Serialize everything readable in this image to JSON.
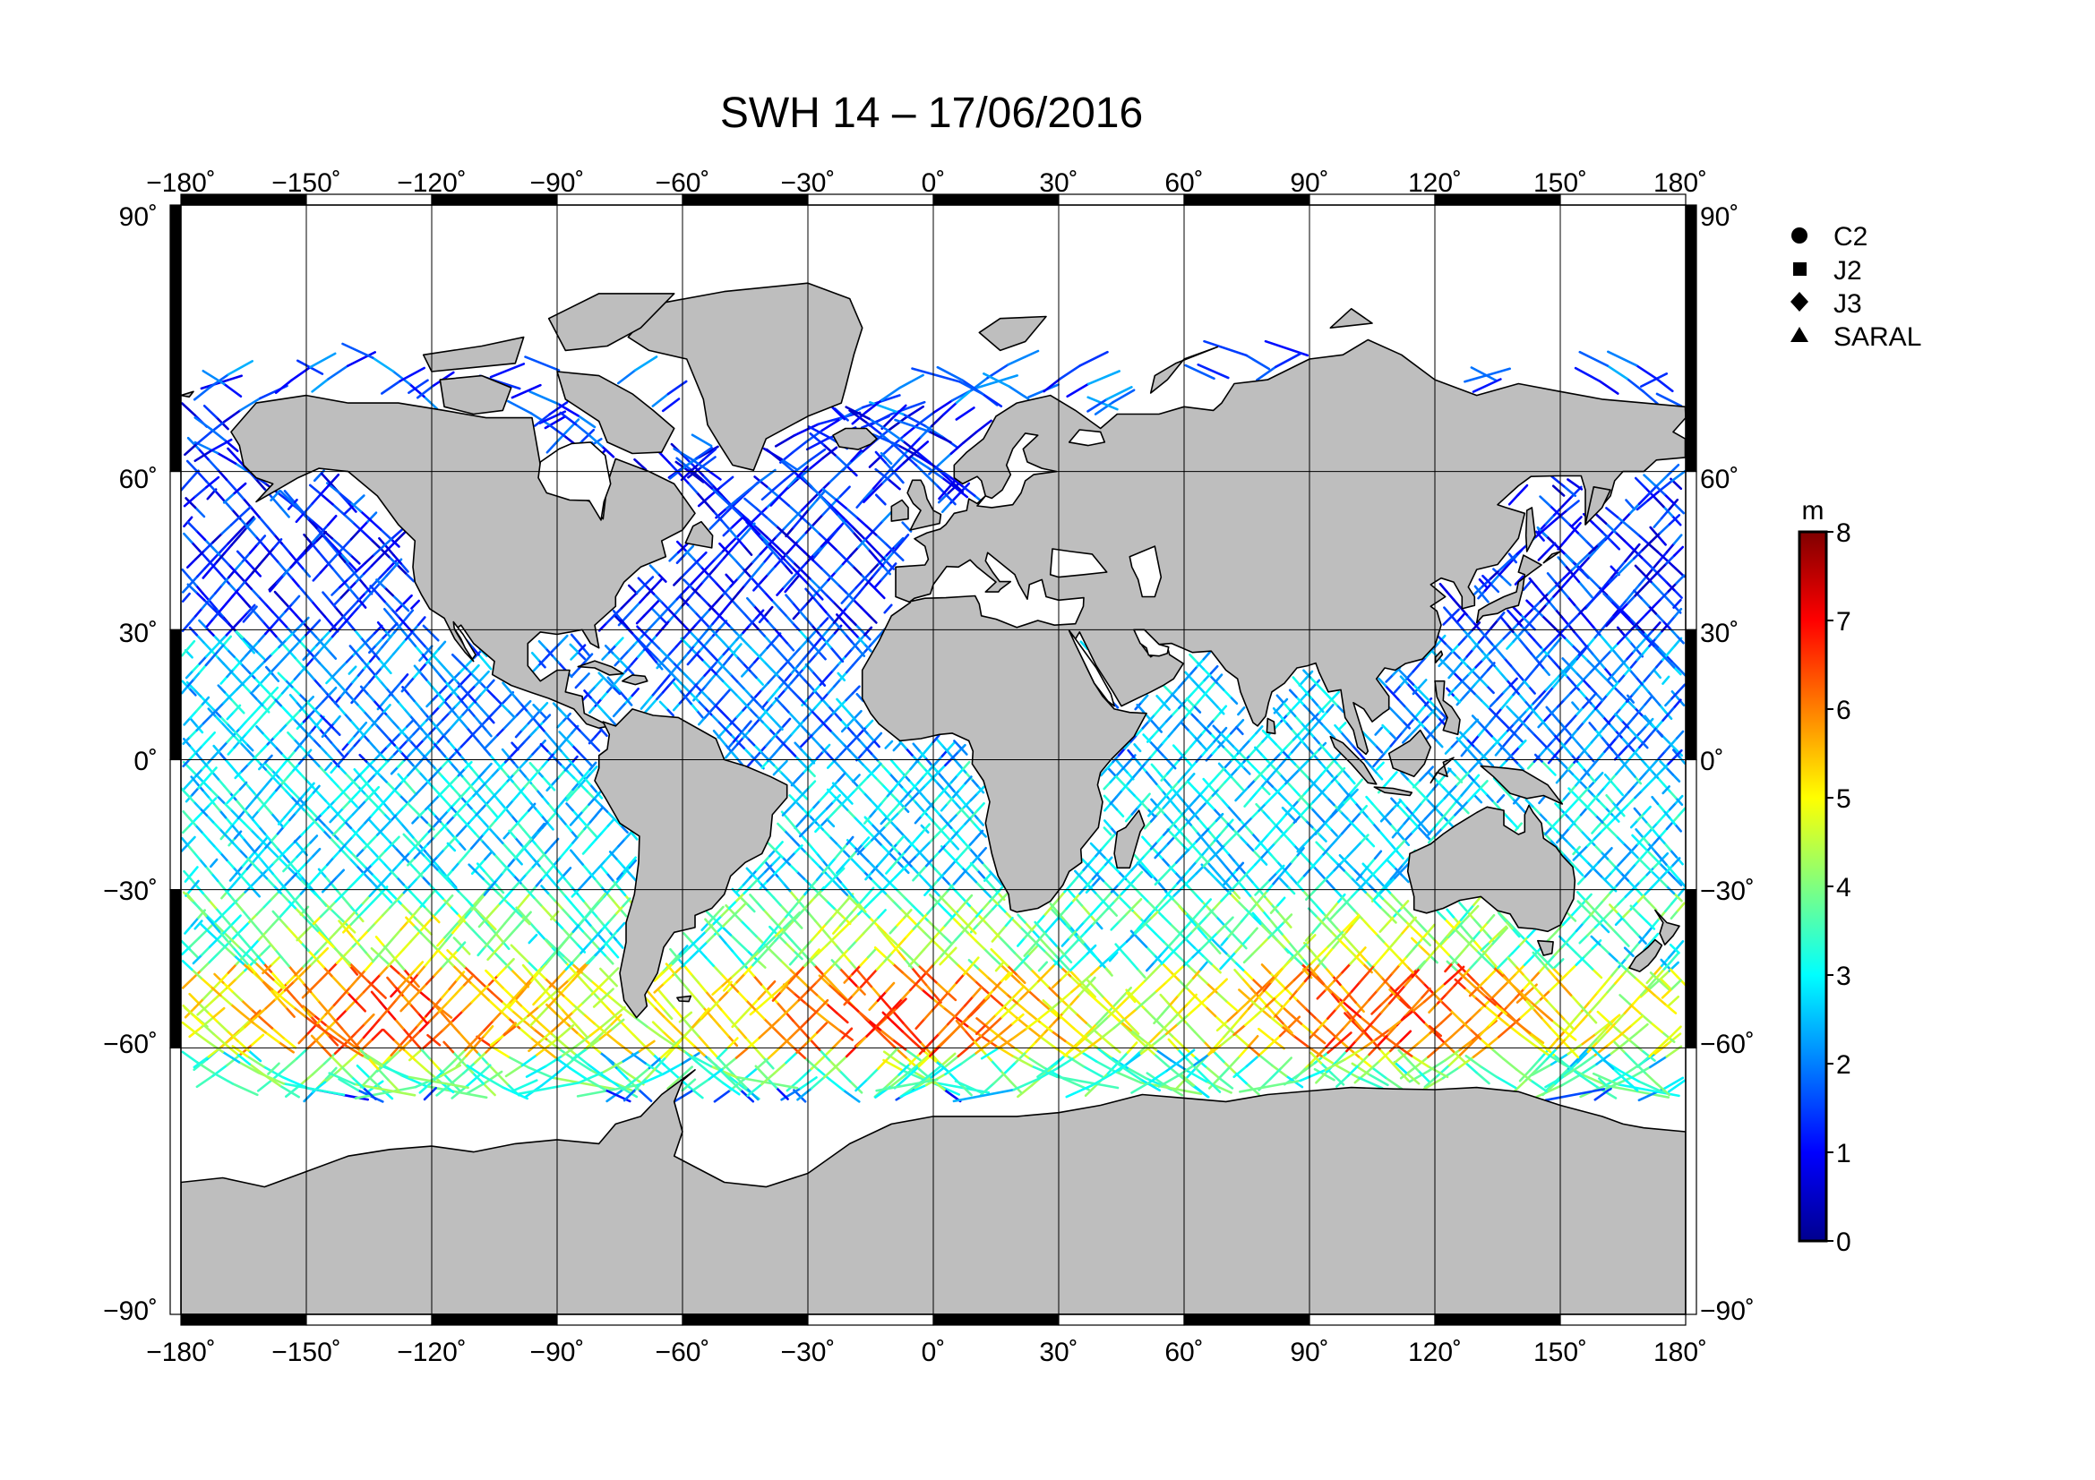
{
  "title": "SWH 14 – 17/06/2016",
  "lon_ticks": [
    -180,
    -150,
    -120,
    -90,
    -60,
    -30,
    0,
    30,
    60,
    90,
    120,
    150,
    180
  ],
  "lat_ticks": [
    90,
    60,
    30,
    0,
    -30,
    -60,
    -90
  ],
  "lon_tick_labels": [
    "−180˚",
    "−150˚",
    "−120˚",
    "−90˚",
    "−60˚",
    "−30˚",
    "0˚",
    "30˚",
    "60˚",
    "90˚",
    "120˚",
    "150˚",
    "180˚"
  ],
  "lat_tick_labels": [
    "90˚",
    "60˚",
    "30˚",
    "0˚",
    "−30˚",
    "−60˚",
    "−90˚"
  ],
  "legend": [
    {
      "label": "C2",
      "icon": "circle-icon"
    },
    {
      "label": "J2",
      "icon": "square-icon"
    },
    {
      "label": "J3",
      "icon": "diamond-icon"
    },
    {
      "label": "SARAL",
      "icon": "triangle-icon"
    }
  ],
  "colorbar": {
    "unit": "m",
    "min": 0,
    "max": 8,
    "ticks": [
      "0",
      "1",
      "2",
      "3",
      "4",
      "5",
      "6",
      "7",
      "8"
    ],
    "colormap": "jet"
  },
  "colors": {
    "land": "#bebebe",
    "coastline": "#000000",
    "frame": "#000000"
  },
  "chart_data": {
    "type": "scatter",
    "variable": "significant wave height along altimeter tracks",
    "xlim": [
      -180,
      180
    ],
    "ylim": [
      -90,
      90
    ],
    "xticks": [
      -180,
      -150,
      -120,
      -90,
      -60,
      -30,
      0,
      30,
      60,
      90,
      120,
      150,
      180
    ],
    "yticks": [
      -90,
      -60,
      -30,
      0,
      30,
      60,
      90
    ],
    "grid": true,
    "color_scale": {
      "min": 0,
      "max": 8,
      "unit": "m"
    },
    "swh_by_latitude_band": [
      {
        "lat_range": [
          30,
          70
        ],
        "swh_m": 1.3
      },
      {
        "lat_range": [
          0,
          30
        ],
        "swh_m": 2.0
      },
      {
        "lat_range": [
          -30,
          0
        ],
        "swh_m": 2.8
      },
      {
        "lat_range": [
          -45,
          -30
        ],
        "swh_m": 3.8
      },
      {
        "lat_range": [
          -60,
          -45
        ],
        "swh_m": 5.5
      },
      {
        "lat_range": [
          -66,
          -60
        ],
        "swh_m": 3.6
      }
    ],
    "series": [
      {
        "name": "C2"
      },
      {
        "name": "J2"
      },
      {
        "name": "J3"
      },
      {
        "name": "SARAL"
      }
    ]
  }
}
